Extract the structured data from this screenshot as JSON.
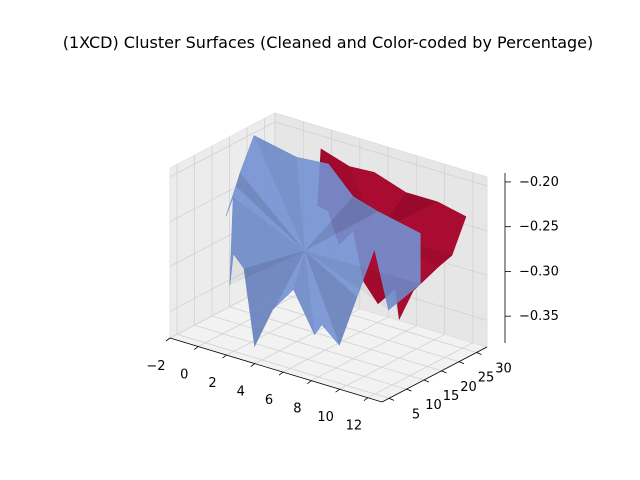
{
  "chart_data": {
    "type": "surface3d",
    "title": "(1XCD) Cluster Surfaces (Cleaned and Color-coded by Percentage)",
    "xlabel": "",
    "ylabel": "",
    "zlabel": "",
    "xlim": [
      -2,
      13
    ],
    "ylim": [
      3,
      33
    ],
    "zlim": [
      -0.38,
      -0.19
    ],
    "x_ticks": [
      -2,
      0,
      2,
      4,
      6,
      8,
      10,
      12
    ],
    "y_ticks": [
      5,
      10,
      15,
      20,
      25,
      30
    ],
    "z_ticks": [
      -0.35,
      -0.3,
      -0.25,
      -0.2
    ],
    "x_tick_labels": [
      "−2",
      "0",
      "2",
      "4",
      "6",
      "8",
      "10",
      "12"
    ],
    "y_tick_labels": [
      "5",
      "10",
      "15",
      "20",
      "25",
      "30"
    ],
    "z_tick_labels": [
      "−0.35",
      "−0.30",
      "−0.25",
      "−0.20"
    ],
    "grid": true,
    "series": [
      {
        "color": "#a50026",
        "alpha": 0.95,
        "outline": [
          [
            2,
            30,
            -0.205
          ],
          [
            4,
            30,
            -0.215
          ],
          [
            6,
            29,
            -0.21
          ],
          [
            8,
            30,
            -0.225
          ],
          [
            10,
            31,
            -0.228
          ],
          [
            12,
            31,
            -0.235
          ],
          [
            12,
            27,
            -0.27
          ],
          [
            12,
            23,
            -0.275
          ],
          [
            11,
            20,
            -0.3
          ],
          [
            10.5,
            18,
            -0.33
          ],
          [
            10,
            19,
            -0.3
          ],
          [
            9,
            18,
            -0.32
          ],
          [
            8,
            18,
            -0.3
          ],
          [
            7,
            19,
            -0.25
          ],
          [
            6,
            19,
            -0.27
          ],
          [
            5,
            20,
            -0.24
          ],
          [
            4,
            21,
            -0.24
          ],
          [
            3.3,
            24,
            -0.25
          ],
          [
            2.5,
            27,
            -0.26
          ]
        ]
      },
      {
        "color": "#7391d3",
        "alpha": 0.9,
        "outline": [
          [
            -1,
            23,
            -0.19
          ],
          [
            2,
            23,
            -0.2
          ],
          [
            4,
            24,
            -0.2
          ],
          [
            6,
            23,
            -0.225
          ],
          [
            8,
            22,
            -0.23
          ],
          [
            11,
            22,
            -0.24
          ],
          [
            11.5,
            20,
            -0.29
          ],
          [
            10,
            17,
            -0.32
          ],
          [
            9.5,
            15,
            -0.25
          ],
          [
            9,
            12,
            -0.3
          ],
          [
            8.5,
            9,
            -0.35
          ],
          [
            7.5,
            8,
            -0.33
          ],
          [
            6.5,
            10,
            -0.35
          ],
          [
            5.5,
            8,
            -0.3
          ],
          [
            4,
            8,
            -0.33
          ],
          [
            2.5,
            9,
            -0.38
          ],
          [
            1.5,
            10,
            -0.3
          ],
          [
            0.5,
            11,
            -0.29
          ],
          [
            0,
            12,
            -0.33
          ],
          [
            -0.5,
            15,
            -0.24
          ],
          [
            -1.5,
            17,
            -0.27
          ],
          [
            -1.3,
            19,
            -0.24
          ],
          [
            -1.5,
            21,
            -0.23
          ]
        ]
      }
    ]
  }
}
